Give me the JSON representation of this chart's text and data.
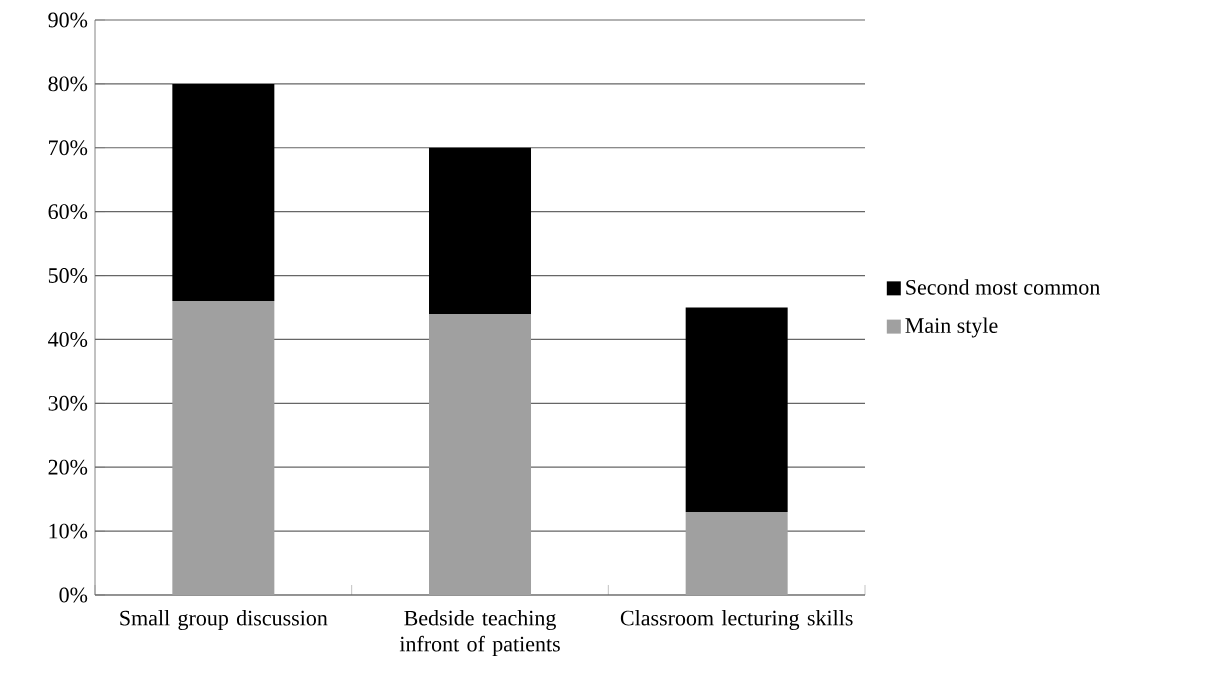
{
  "chart_data": {
    "type": "bar",
    "stacked": true,
    "categories": [
      "Small group discussion",
      "Bedside teaching infront of patients",
      "Classroom lecturing skills"
    ],
    "series": [
      {
        "name": "Main style",
        "color": "#a0a0a0",
        "values": [
          46,
          44,
          13
        ]
      },
      {
        "name": "Second most common",
        "color": "#000000",
        "values": [
          34,
          26,
          32
        ]
      }
    ],
    "ylim": [
      0,
      90
    ],
    "yticks": [
      {
        "value": 0,
        "label": "0%"
      },
      {
        "value": 10,
        "label": "10%"
      },
      {
        "value": 20,
        "label": "20%"
      },
      {
        "value": 30,
        "label": "30%"
      },
      {
        "value": 40,
        "label": "40%"
      },
      {
        "value": 50,
        "label": "50%"
      },
      {
        "value": 60,
        "label": "60%"
      },
      {
        "value": 70,
        "label": "70%"
      },
      {
        "value": 80,
        "label": "80%"
      },
      {
        "value": 90,
        "label": "90%"
      }
    ],
    "grid": "y",
    "legend": "right"
  }
}
